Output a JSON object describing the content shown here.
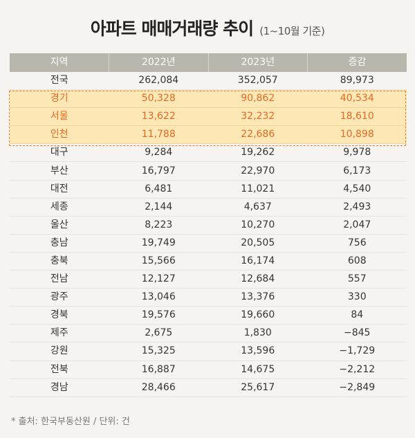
{
  "title": "아파트 매매거래량 추이",
  "subtitle": "(1~10월 기준)",
  "columns": [
    "지역",
    "2022년",
    "2023년",
    "증감"
  ],
  "rows": [
    {
      "region": "전국",
      "y2022": "262,084",
      "y2023": "352,057",
      "change": "89,973",
      "highlight": false
    },
    {
      "region": "경기",
      "y2022": "50,328",
      "y2023": "90,862",
      "change": "40,534",
      "highlight": true
    },
    {
      "region": "서울",
      "y2022": "13,622",
      "y2023": "32,232",
      "change": "18,610",
      "highlight": true
    },
    {
      "region": "인천",
      "y2022": "11,788",
      "y2023": "22,686",
      "change": "10,898",
      "highlight": true
    },
    {
      "region": "대구",
      "y2022": "9,284",
      "y2023": "19,262",
      "change": "9,978",
      "highlight": false
    },
    {
      "region": "부산",
      "y2022": "16,797",
      "y2023": "22,970",
      "change": "6,173",
      "highlight": false
    },
    {
      "region": "대전",
      "y2022": "6,481",
      "y2023": "11,021",
      "change": "4,540",
      "highlight": false
    },
    {
      "region": "세종",
      "y2022": "2,144",
      "y2023": "4,637",
      "change": "2,493",
      "highlight": false
    },
    {
      "region": "울산",
      "y2022": "8,223",
      "y2023": "10,270",
      "change": "2,047",
      "highlight": false
    },
    {
      "region": "충남",
      "y2022": "19,749",
      "y2023": "20,505",
      "change": "756",
      "highlight": false
    },
    {
      "region": "충북",
      "y2022": "15,566",
      "y2023": "16,174",
      "change": "608",
      "highlight": false
    },
    {
      "region": "전남",
      "y2022": "12,127",
      "y2023": "12,684",
      "change": "557",
      "highlight": false
    },
    {
      "region": "광주",
      "y2022": "13,046",
      "y2023": "13,376",
      "change": "330",
      "highlight": false
    },
    {
      "region": "경북",
      "y2022": "19,576",
      "y2023": "19,660",
      "change": "84",
      "highlight": false
    },
    {
      "region": "제주",
      "y2022": "2,675",
      "y2023": "1,830",
      "change": "−845",
      "highlight": false
    },
    {
      "region": "강원",
      "y2022": "15,325",
      "y2023": "13,596",
      "change": "−1,729",
      "highlight": false
    },
    {
      "region": "전북",
      "y2022": "16,887",
      "y2023": "14,675",
      "change": "−2,212",
      "highlight": false
    },
    {
      "region": "경남",
      "y2022": "28,466",
      "y2023": "25,617",
      "change": "−2,849",
      "highlight": false
    }
  ],
  "footnote": "* 출처: 한국부동산원 / 단위: 건",
  "colors": {
    "header_bg": "#b9b6ae",
    "highlight_bg": "#fde7b4",
    "highlight_text": "#e66a24",
    "page_bg": "#f6f4f0"
  }
}
